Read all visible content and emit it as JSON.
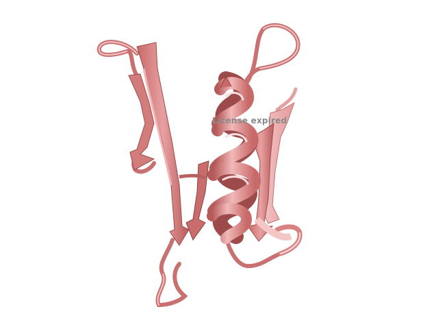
{
  "viewer": {
    "background": "#ffffff",
    "watermark_text": "License expired"
  },
  "structure": {
    "representation": "cartoon",
    "elements": [
      "beta-strand",
      "alpha-helix",
      "loop"
    ],
    "colors": {
      "base": "#e08a8a",
      "light": "#f2b8b8",
      "dark": "#b55a5a",
      "shadow": "#8c3e3e",
      "highlight": "#fbdede"
    }
  }
}
